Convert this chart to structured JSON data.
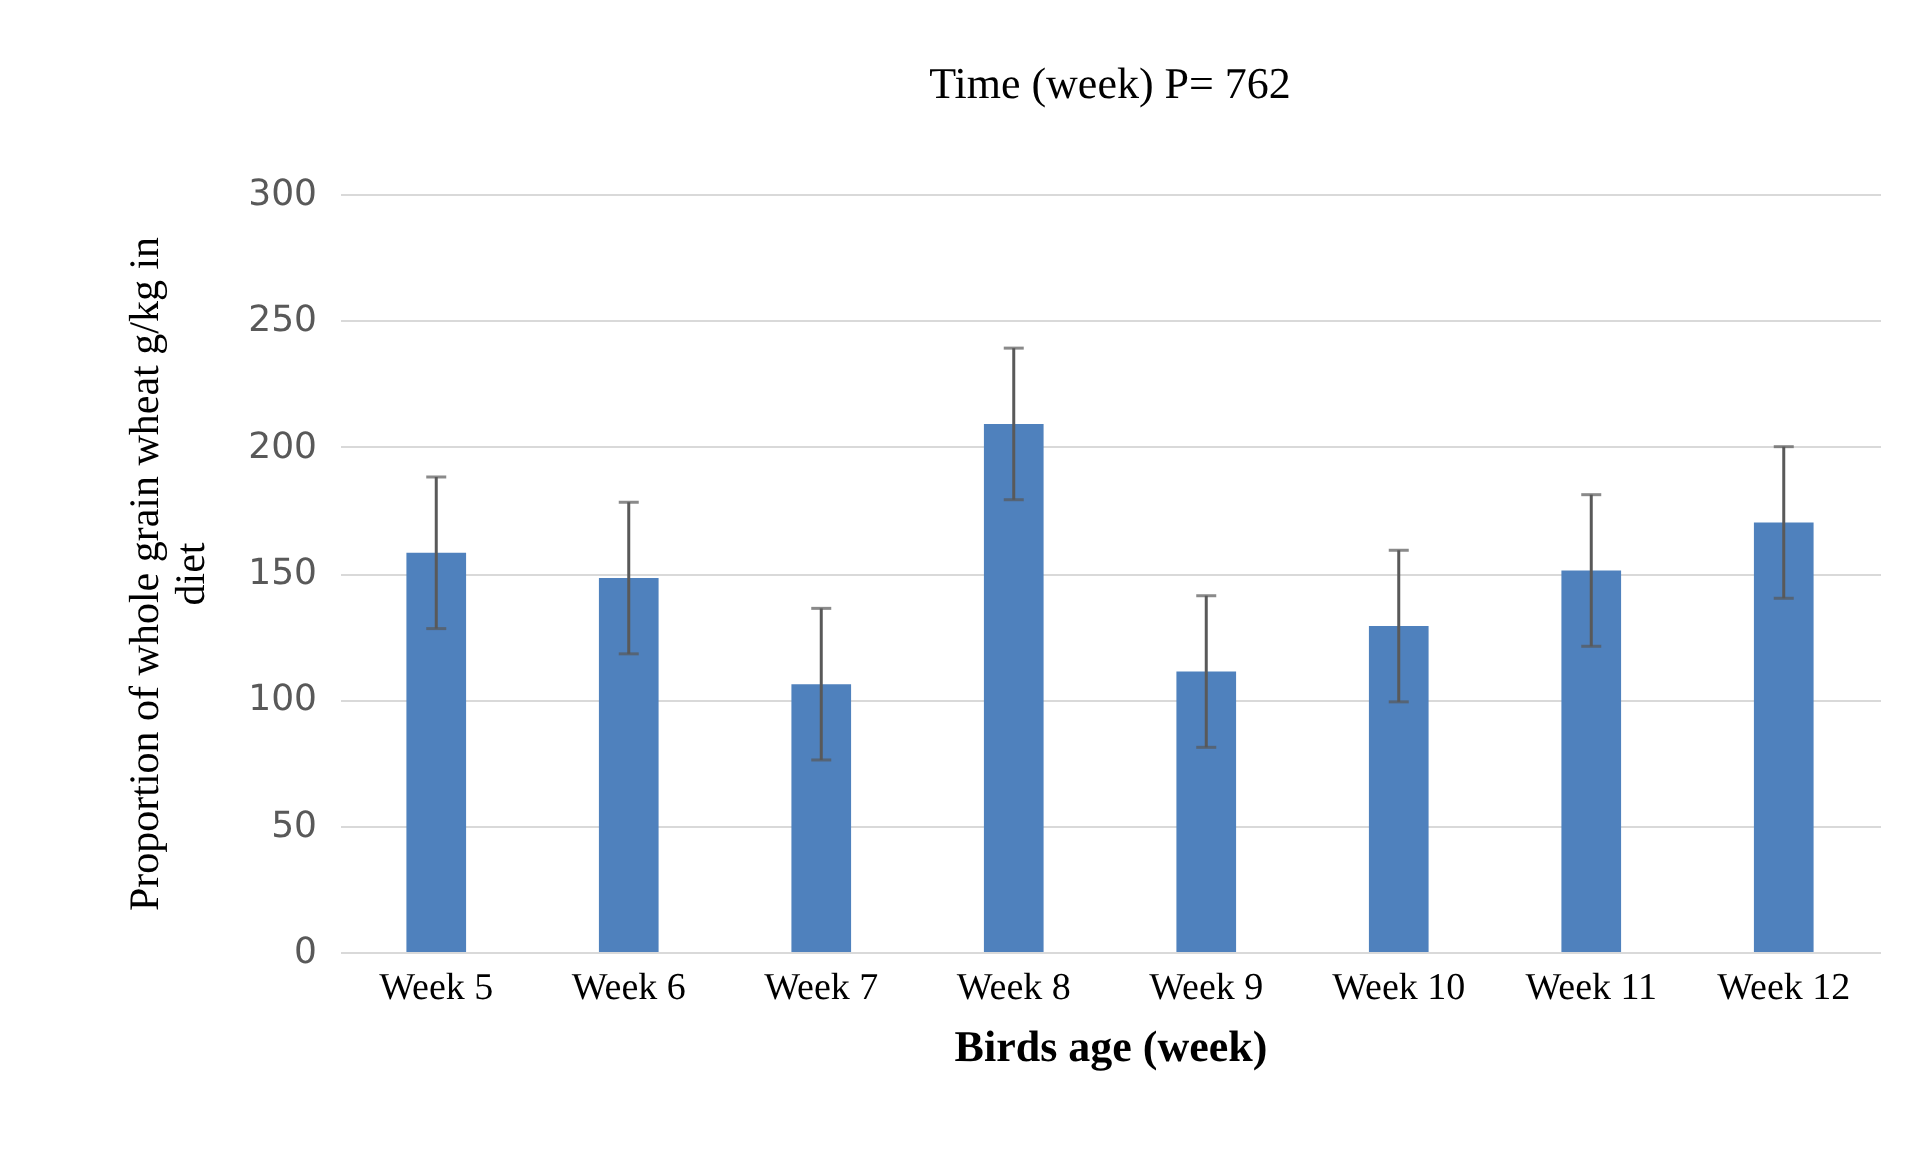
{
  "chart_data": {
    "type": "bar",
    "title": "Time (week) P= 762",
    "xlabel": "Birds age (week)",
    "ylabel": "Proportion of whole grain wheat g/kg in diet",
    "categories": [
      "Week 5",
      "Week 6",
      "Week 7",
      "Week 8",
      "Week 9",
      "Week 10",
      "Week 11",
      "Week 12"
    ],
    "series": [
      {
        "color": "#4f81bd",
        "values": [
          158,
          148,
          106,
          209,
          111,
          129,
          151,
          170
        ],
        "errors": [
          30,
          30,
          30,
          30,
          30,
          30,
          30,
          30
        ]
      }
    ],
    "ylim": [
      0,
      300
    ],
    "yticks": [
      0,
      50,
      100,
      150,
      200,
      250,
      300
    ],
    "grid": "y"
  }
}
